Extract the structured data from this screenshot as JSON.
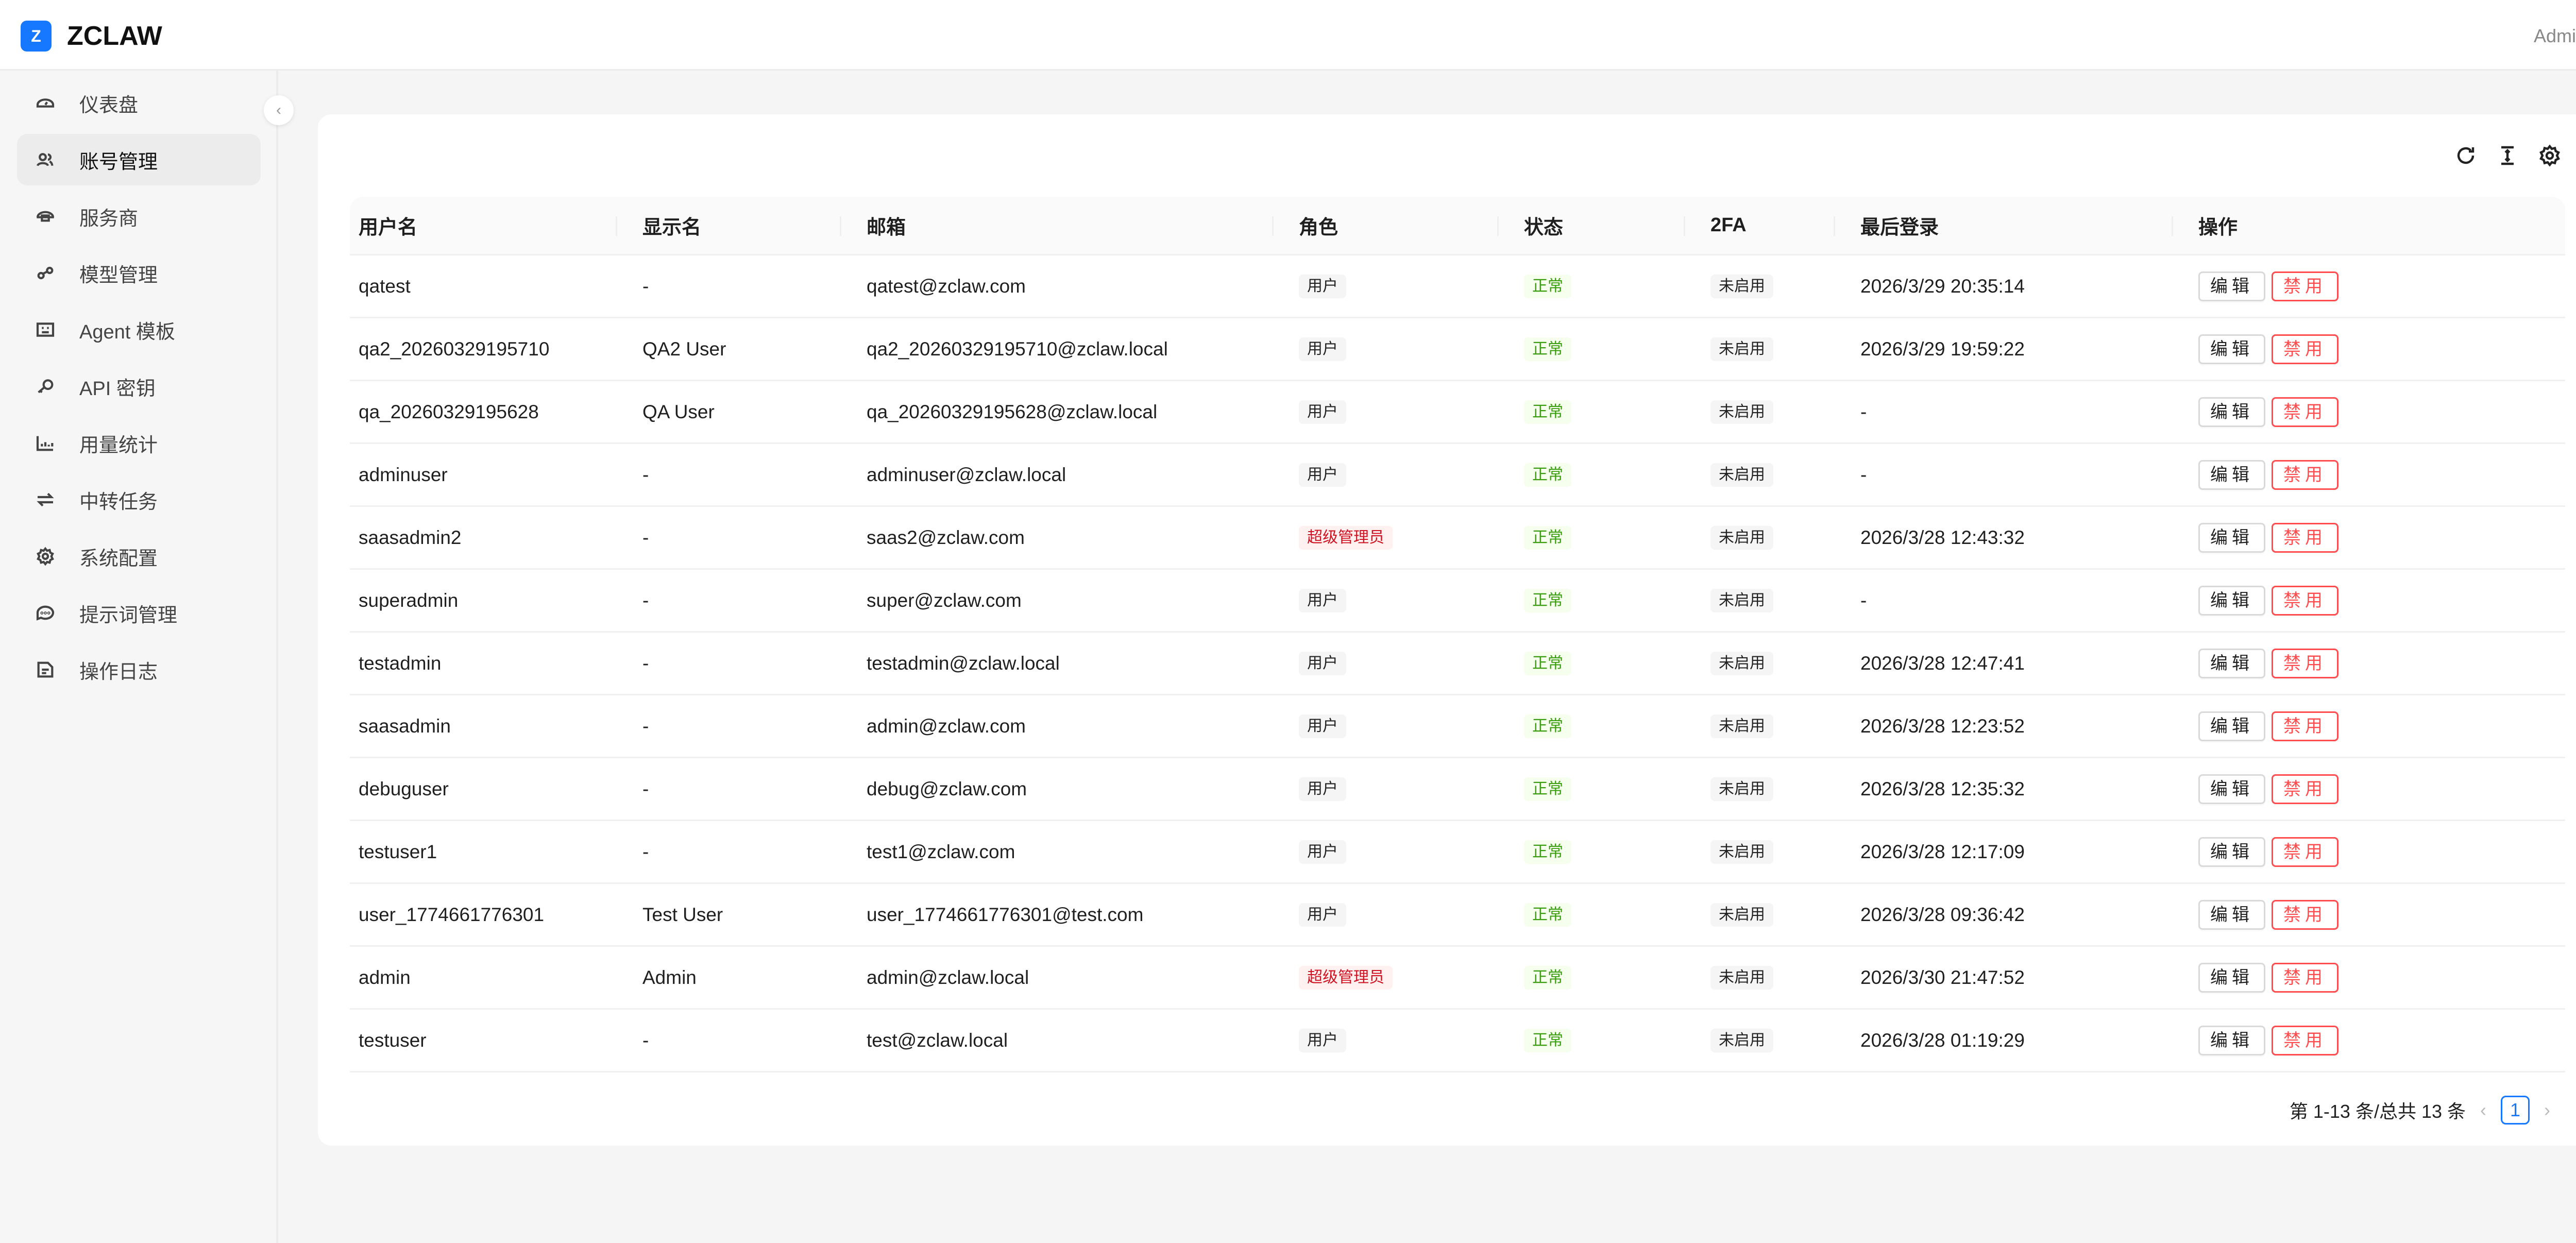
{
  "app": {
    "logo_letter": "Z",
    "title": "ZCLAW",
    "user": "Admin",
    "brand_color": "#1677ff"
  },
  "sidebar": {
    "items": [
      {
        "label": "仪表盘",
        "icon": "dashboard-icon"
      },
      {
        "label": "账号管理",
        "icon": "users-icon",
        "active": true
      },
      {
        "label": "服务商",
        "icon": "cloud-icon"
      },
      {
        "label": "模型管理",
        "icon": "link-icon"
      },
      {
        "label": "Agent 模板",
        "icon": "template-icon"
      },
      {
        "label": "API 密钥",
        "icon": "key-icon"
      },
      {
        "label": "用量统计",
        "icon": "bar-chart-icon"
      },
      {
        "label": "中转任务",
        "icon": "swap-icon"
      },
      {
        "label": "系统配置",
        "icon": "gear-icon"
      },
      {
        "label": "提示词管理",
        "icon": "message-icon"
      },
      {
        "label": "操作日志",
        "icon": "file-icon"
      }
    ]
  },
  "table": {
    "columns": [
      "用户名",
      "显示名",
      "邮箱",
      "角色",
      "状态",
      "2FA",
      "最后登录",
      "操作"
    ],
    "edit_label": "编辑",
    "disable_label": "禁用",
    "rows": [
      {
        "username": "qatest",
        "display": "-",
        "email": "qatest@zclaw.com",
        "role": "用户",
        "status": "正常",
        "twofa": "未启用",
        "last_login": "2026/3/29 20:35:14"
      },
      {
        "username": "qa2_20260329195710",
        "display": "QA2 User",
        "email": "qa2_20260329195710@zclaw.local",
        "role": "用户",
        "status": "正常",
        "twofa": "未启用",
        "last_login": "2026/3/29 19:59:22"
      },
      {
        "username": "qa_20260329195628",
        "display": "QA User",
        "email": "qa_20260329195628@zclaw.local",
        "role": "用户",
        "status": "正常",
        "twofa": "未启用",
        "last_login": "-"
      },
      {
        "username": "adminuser",
        "display": "-",
        "email": "adminuser@zclaw.local",
        "role": "用户",
        "status": "正常",
        "twofa": "未启用",
        "last_login": "-"
      },
      {
        "username": "saasadmin2",
        "display": "-",
        "email": "saas2@zclaw.com",
        "role": "超级管理员",
        "status": "正常",
        "twofa": "未启用",
        "last_login": "2026/3/28 12:43:32"
      },
      {
        "username": "superadmin",
        "display": "-",
        "email": "super@zclaw.com",
        "role": "用户",
        "status": "正常",
        "twofa": "未启用",
        "last_login": "-"
      },
      {
        "username": "testadmin",
        "display": "-",
        "email": "testadmin@zclaw.local",
        "role": "用户",
        "status": "正常",
        "twofa": "未启用",
        "last_login": "2026/3/28 12:47:41"
      },
      {
        "username": "saasadmin",
        "display": "-",
        "email": "admin@zclaw.com",
        "role": "用户",
        "status": "正常",
        "twofa": "未启用",
        "last_login": "2026/3/28 12:23:52"
      },
      {
        "username": "debuguser",
        "display": "-",
        "email": "debug@zclaw.com",
        "role": "用户",
        "status": "正常",
        "twofa": "未启用",
        "last_login": "2026/3/28 12:35:32"
      },
      {
        "username": "testuser1",
        "display": "-",
        "email": "test1@zclaw.com",
        "role": "用户",
        "status": "正常",
        "twofa": "未启用",
        "last_login": "2026/3/28 12:17:09"
      },
      {
        "username": "user_1774661776301",
        "display": "Test User",
        "email": "user_1774661776301@test.com",
        "role": "用户",
        "status": "正常",
        "twofa": "未启用",
        "last_login": "2026/3/28 09:36:42"
      },
      {
        "username": "admin",
        "display": "Admin",
        "email": "admin@zclaw.local",
        "role": "超级管理员",
        "status": "正常",
        "twofa": "未启用",
        "last_login": "2026/3/30 21:47:52"
      },
      {
        "username": "testuser",
        "display": "-",
        "email": "test@zclaw.local",
        "role": "用户",
        "status": "正常",
        "twofa": "未启用",
        "last_login": "2026/3/28 01:19:29"
      }
    ]
  },
  "pagination": {
    "summary": "第 1-13 条/总共 13 条",
    "current_page": "1"
  }
}
